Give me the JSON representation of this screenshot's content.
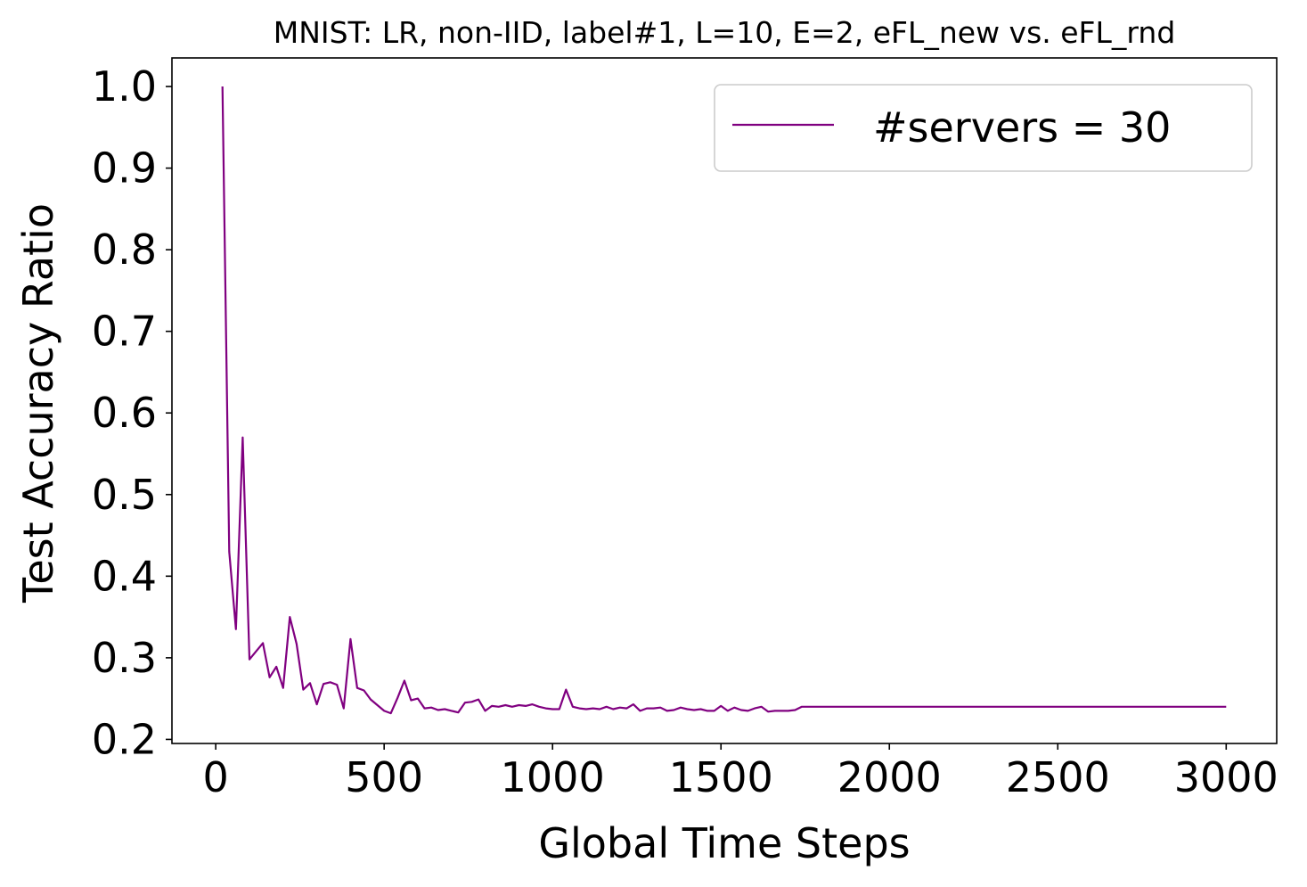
{
  "chart_data": {
    "type": "line",
    "title": "MNIST: LR, non-IID, label#1, L=10, E=2, eFL_new vs. eFL_rnd",
    "xlabel": "Global Time Steps",
    "ylabel": "Test Accuracy Ratio",
    "xlim": [
      -130,
      3150
    ],
    "ylim": [
      0.195,
      1.035
    ],
    "xticks": [
      0,
      500,
      1000,
      1500,
      2000,
      2500,
      3000
    ],
    "xtick_labels": [
      "0",
      "500",
      "1000",
      "1500",
      "2000",
      "2500",
      "3000"
    ],
    "yticks": [
      0.2,
      0.3,
      0.4,
      0.5,
      0.6,
      0.7,
      0.8,
      0.9,
      1.0
    ],
    "ytick_labels": [
      "0.2",
      "0.3",
      "0.4",
      "0.5",
      "0.6",
      "0.7",
      "0.8",
      "0.9",
      "1.0"
    ],
    "grid": false,
    "legend_position": "top-right",
    "series": [
      {
        "name": "#servers = 30",
        "color": "#800080",
        "x": [
          20,
          40,
          60,
          80,
          100,
          120,
          140,
          160,
          180,
          200,
          220,
          240,
          260,
          280,
          300,
          320,
          340,
          360,
          380,
          400,
          420,
          440,
          460,
          480,
          500,
          520,
          540,
          560,
          580,
          600,
          620,
          640,
          660,
          680,
          700,
          720,
          740,
          760,
          780,
          800,
          820,
          840,
          860,
          880,
          900,
          920,
          940,
          960,
          980,
          1000,
          1020,
          1040,
          1060,
          1080,
          1100,
          1120,
          1140,
          1160,
          1180,
          1200,
          1220,
          1240,
          1260,
          1280,
          1300,
          1320,
          1340,
          1360,
          1380,
          1400,
          1420,
          1440,
          1460,
          1480,
          1500,
          1520,
          1540,
          1560,
          1580,
          1600,
          1620,
          1640,
          1660,
          1680,
          1700,
          1720,
          1740,
          1760,
          2000,
          2500,
          3000
        ],
        "values": [
          1.0,
          0.43,
          0.335,
          0.57,
          0.298,
          0.308,
          0.318,
          0.276,
          0.289,
          0.263,
          0.35,
          0.317,
          0.261,
          0.269,
          0.243,
          0.268,
          0.27,
          0.267,
          0.238,
          0.323,
          0.263,
          0.26,
          0.249,
          0.242,
          0.235,
          0.232,
          0.251,
          0.272,
          0.248,
          0.25,
          0.238,
          0.239,
          0.236,
          0.237,
          0.235,
          0.233,
          0.245,
          0.246,
          0.249,
          0.235,
          0.241,
          0.24,
          0.242,
          0.24,
          0.242,
          0.241,
          0.243,
          0.24,
          0.238,
          0.237,
          0.237,
          0.261,
          0.24,
          0.238,
          0.237,
          0.238,
          0.237,
          0.24,
          0.237,
          0.239,
          0.238,
          0.243,
          0.235,
          0.238,
          0.238,
          0.239,
          0.235,
          0.236,
          0.239,
          0.237,
          0.236,
          0.237,
          0.235,
          0.235,
          0.241,
          0.235,
          0.239,
          0.236,
          0.235,
          0.238,
          0.24,
          0.234,
          0.235,
          0.235,
          0.235,
          0.236,
          0.24,
          0.24,
          0.24,
          0.24,
          0.24
        ]
      }
    ]
  }
}
